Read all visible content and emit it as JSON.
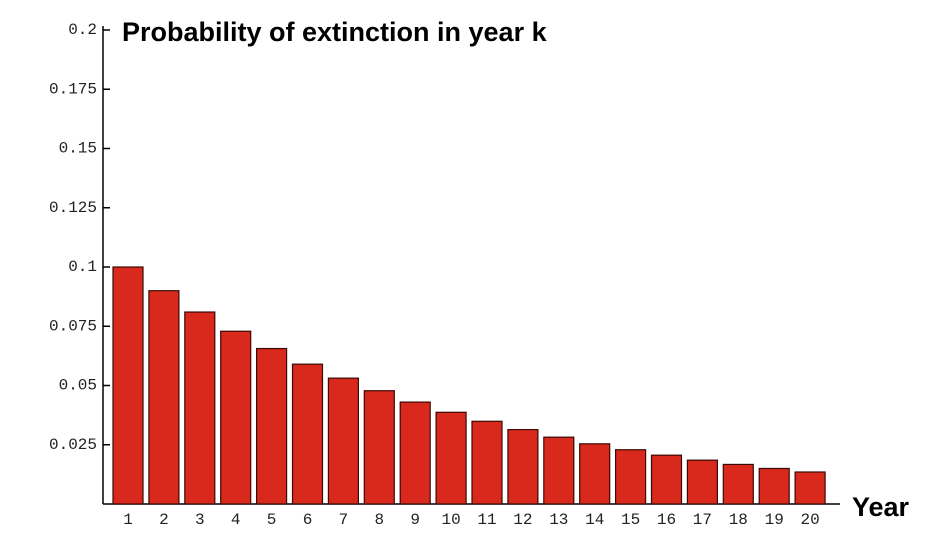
{
  "chart_data": {
    "type": "bar",
    "title": "Probability of extinction in year k",
    "x_label": "Year",
    "categories": [
      "1",
      "2",
      "3",
      "4",
      "5",
      "6",
      "7",
      "8",
      "9",
      "10",
      "11",
      "12",
      "13",
      "14",
      "15",
      "16",
      "17",
      "18",
      "19",
      "20"
    ],
    "values": [
      0.1,
      0.09,
      0.081,
      0.0729,
      0.0656,
      0.059,
      0.0531,
      0.0478,
      0.043,
      0.0387,
      0.0349,
      0.0314,
      0.0282,
      0.0254,
      0.0229,
      0.0206,
      0.0185,
      0.0167,
      0.015,
      0.0135
    ],
    "color": "#d9281c",
    "ylim": [
      0,
      0.2
    ],
    "yticks": [
      0.025,
      0.05,
      0.075,
      0.1,
      0.125,
      0.15,
      0.175,
      0.2
    ]
  }
}
